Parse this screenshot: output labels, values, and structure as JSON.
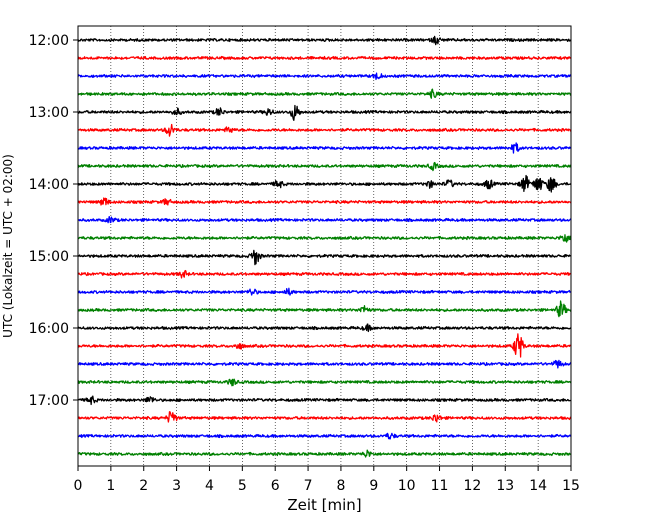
{
  "chart_data": {
    "type": "line",
    "title": "",
    "xlabel": "Zeit  [min]",
    "ylabel": "UTC (Lokalzeit = UTC + 02:00)",
    "xlim": [
      0,
      15
    ],
    "x_ticks": [
      "0",
      "1",
      "2",
      "3",
      "4",
      "5",
      "6",
      "7",
      "8",
      "9",
      "10",
      "11",
      "12",
      "13",
      "14",
      "15"
    ],
    "y_tick_labels": [
      "12:00",
      "13:00",
      "14:00",
      "15:00",
      "16:00",
      "17:00"
    ],
    "grid": "vertical dotted",
    "legend": "none",
    "trace_interval_minutes": 15,
    "trace_colors": [
      "#000000",
      "#ff0000",
      "#0000ff",
      "#008000"
    ],
    "traces": [
      {
        "start": "12:00",
        "color": "#000000",
        "events": [
          [
            10.9,
            0.4
          ]
        ]
      },
      {
        "start": "12:15",
        "color": "#ff0000",
        "events": []
      },
      {
        "start": "12:30",
        "color": "#0000ff",
        "events": [
          [
            9.1,
            0.35
          ]
        ]
      },
      {
        "start": "12:45",
        "color": "#008000",
        "events": [
          [
            10.8,
            0.4
          ]
        ]
      },
      {
        "start": "13:00",
        "color": "#000000",
        "events": [
          [
            3.0,
            0.35
          ],
          [
            4.3,
            0.4
          ],
          [
            5.8,
            0.35
          ],
          [
            6.6,
            0.9
          ]
        ]
      },
      {
        "start": "13:15",
        "color": "#ff0000",
        "events": [
          [
            2.8,
            0.7
          ],
          [
            4.6,
            0.3
          ]
        ]
      },
      {
        "start": "13:30",
        "color": "#0000ff",
        "events": [
          [
            13.3,
            0.5
          ]
        ]
      },
      {
        "start": "13:45",
        "color": "#008000",
        "events": [
          [
            10.8,
            0.35
          ]
        ]
      },
      {
        "start": "14:00",
        "color": "#000000",
        "events": [
          [
            6.1,
            0.4
          ],
          [
            10.7,
            0.35
          ],
          [
            11.3,
            0.4
          ],
          [
            12.5,
            0.5
          ],
          [
            13.6,
            0.9
          ],
          [
            14.0,
            0.9
          ],
          [
            14.4,
            0.9
          ]
        ]
      },
      {
        "start": "14:15",
        "color": "#ff0000",
        "events": [
          [
            0.8,
            0.45
          ],
          [
            2.7,
            0.3
          ]
        ]
      },
      {
        "start": "14:30",
        "color": "#0000ff",
        "events": [
          [
            1.0,
            0.3
          ]
        ]
      },
      {
        "start": "14:45",
        "color": "#008000",
        "events": [
          [
            14.8,
            0.5
          ]
        ]
      },
      {
        "start": "15:00",
        "color": "#000000",
        "events": [
          [
            5.4,
            0.9
          ]
        ]
      },
      {
        "start": "15:15",
        "color": "#ff0000",
        "events": [
          [
            3.2,
            0.35
          ]
        ]
      },
      {
        "start": "15:30",
        "color": "#0000ff",
        "events": [
          [
            5.3,
            0.35
          ],
          [
            6.4,
            0.3
          ]
        ]
      },
      {
        "start": "15:45",
        "color": "#008000",
        "events": [
          [
            8.7,
            0.4
          ],
          [
            14.7,
            0.9
          ]
        ]
      },
      {
        "start": "16:00",
        "color": "#000000",
        "events": [
          [
            8.8,
            0.3
          ]
        ]
      },
      {
        "start": "16:15",
        "color": "#ff0000",
        "events": [
          [
            4.9,
            0.3
          ],
          [
            13.4,
            1.6
          ]
        ]
      },
      {
        "start": "16:30",
        "color": "#0000ff",
        "events": [
          [
            14.6,
            0.4
          ]
        ]
      },
      {
        "start": "16:45",
        "color": "#008000",
        "events": [
          [
            4.7,
            0.35
          ]
        ]
      },
      {
        "start": "17:00",
        "color": "#000000",
        "events": [
          [
            0.4,
            0.4
          ],
          [
            2.2,
            0.35
          ]
        ]
      },
      {
        "start": "17:15",
        "color": "#ff0000",
        "events": [
          [
            2.85,
            0.8
          ],
          [
            10.9,
            0.45
          ]
        ]
      },
      {
        "start": "17:30",
        "color": "#0000ff",
        "events": [
          [
            9.5,
            0.3
          ]
        ]
      },
      {
        "start": "17:45",
        "color": "#008000",
        "events": [
          [
            8.8,
            0.35
          ]
        ]
      }
    ]
  }
}
